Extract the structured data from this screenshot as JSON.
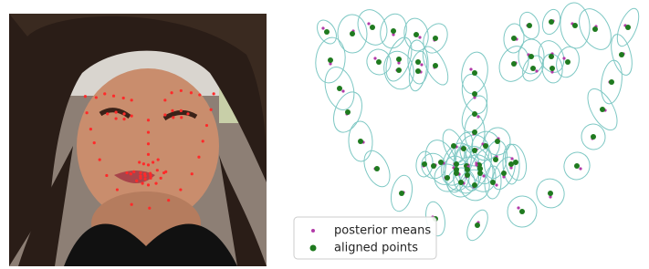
{
  "legend": {
    "items": [
      "posterior means",
      "aligned points"
    ]
  }
}
